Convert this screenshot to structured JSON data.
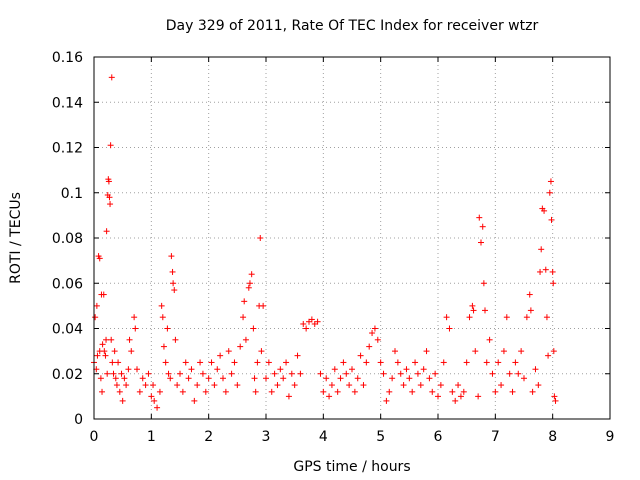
{
  "chart_data": {
    "type": "scatter",
    "title": "Day 329 of 2011, Rate Of TEC Index for receiver wtzr",
    "xlabel": "GPS time / hours",
    "ylabel": "ROTI / TECUs",
    "xlim": [
      0,
      9
    ],
    "ylim": [
      0,
      0.16
    ],
    "x_ticks": [
      "0",
      "1",
      "2",
      "3",
      "4",
      "5",
      "6",
      "7",
      "8",
      "9"
    ],
    "y_ticks": [
      "0",
      "0.02",
      "0.04",
      "0.06",
      "0.08",
      "0.1",
      "0.12",
      "0.14",
      "0.16"
    ],
    "grid": true,
    "marker": "+",
    "series_color": "#ff0000",
    "series": [
      {
        "name": "ROTI",
        "points": [
          [
            0.0,
            0.025
          ],
          [
            0.02,
            0.045
          ],
          [
            0.04,
            0.022
          ],
          [
            0.05,
            0.05
          ],
          [
            0.06,
            0.028
          ],
          [
            0.08,
            0.072
          ],
          [
            0.1,
            0.071
          ],
          [
            0.1,
            0.03
          ],
          [
            0.12,
            0.018
          ],
          [
            0.13,
            0.055
          ],
          [
            0.14,
            0.012
          ],
          [
            0.15,
            0.033
          ],
          [
            0.17,
            0.055
          ],
          [
            0.18,
            0.03
          ],
          [
            0.2,
            0.028
          ],
          [
            0.21,
            0.035
          ],
          [
            0.22,
            0.083
          ],
          [
            0.23,
            0.02
          ],
          [
            0.24,
            0.099
          ],
          [
            0.25,
            0.106
          ],
          [
            0.26,
            0.105
          ],
          [
            0.27,
            0.098
          ],
          [
            0.28,
            0.095
          ],
          [
            0.29,
            0.121
          ],
          [
            0.3,
            0.035
          ],
          [
            0.31,
            0.151
          ],
          [
            0.32,
            0.025
          ],
          [
            0.34,
            0.02
          ],
          [
            0.36,
            0.03
          ],
          [
            0.38,
            0.018
          ],
          [
            0.4,
            0.015
          ],
          [
            0.42,
            0.025
          ],
          [
            0.45,
            0.012
          ],
          [
            0.48,
            0.02
          ],
          [
            0.5,
            0.008
          ],
          [
            0.53,
            0.018
          ],
          [
            0.56,
            0.015
          ],
          [
            0.6,
            0.022
          ],
          [
            0.62,
            0.035
          ],
          [
            0.65,
            0.03
          ],
          [
            0.7,
            0.045
          ],
          [
            0.72,
            0.04
          ],
          [
            0.75,
            0.022
          ],
          [
            0.8,
            0.012
          ],
          [
            0.85,
            0.018
          ],
          [
            0.9,
            0.015
          ],
          [
            0.95,
            0.02
          ],
          [
            1.0,
            0.01
          ],
          [
            1.03,
            0.015
          ],
          [
            1.05,
            0.008
          ],
          [
            1.1,
            0.005
          ],
          [
            1.15,
            0.012
          ],
          [
            1.18,
            0.05
          ],
          [
            1.2,
            0.045
          ],
          [
            1.22,
            0.032
          ],
          [
            1.25,
            0.025
          ],
          [
            1.28,
            0.04
          ],
          [
            1.3,
            0.02
          ],
          [
            1.33,
            0.018
          ],
          [
            1.35,
            0.072
          ],
          [
            1.37,
            0.065
          ],
          [
            1.38,
            0.06
          ],
          [
            1.4,
            0.057
          ],
          [
            1.42,
            0.035
          ],
          [
            1.45,
            0.015
          ],
          [
            1.5,
            0.02
          ],
          [
            1.55,
            0.012
          ],
          [
            1.6,
            0.025
          ],
          [
            1.65,
            0.018
          ],
          [
            1.7,
            0.022
          ],
          [
            1.75,
            0.008
          ],
          [
            1.8,
            0.015
          ],
          [
            1.85,
            0.025
          ],
          [
            1.9,
            0.02
          ],
          [
            1.95,
            0.012
          ],
          [
            2.0,
            0.018
          ],
          [
            2.05,
            0.025
          ],
          [
            2.1,
            0.015
          ],
          [
            2.15,
            0.022
          ],
          [
            2.2,
            0.028
          ],
          [
            2.25,
            0.018
          ],
          [
            2.3,
            0.012
          ],
          [
            2.35,
            0.03
          ],
          [
            2.4,
            0.02
          ],
          [
            2.45,
            0.025
          ],
          [
            2.5,
            0.015
          ],
          [
            2.55,
            0.032
          ],
          [
            2.6,
            0.045
          ],
          [
            2.62,
            0.052
          ],
          [
            2.65,
            0.035
          ],
          [
            2.7,
            0.058
          ],
          [
            2.72,
            0.06
          ],
          [
            2.75,
            0.064
          ],
          [
            2.78,
            0.04
          ],
          [
            2.8,
            0.018
          ],
          [
            2.82,
            0.012
          ],
          [
            2.85,
            0.025
          ],
          [
            2.88,
            0.05
          ],
          [
            2.9,
            0.08
          ],
          [
            2.92,
            0.03
          ],
          [
            2.95,
            0.05
          ],
          [
            3.0,
            0.018
          ],
          [
            3.05,
            0.025
          ],
          [
            3.1,
            0.012
          ],
          [
            3.15,
            0.02
          ],
          [
            3.2,
            0.015
          ],
          [
            3.25,
            0.022
          ],
          [
            3.3,
            0.018
          ],
          [
            3.35,
            0.025
          ],
          [
            3.4,
            0.01
          ],
          [
            3.45,
            0.02
          ],
          [
            3.5,
            0.015
          ],
          [
            3.55,
            0.028
          ],
          [
            3.6,
            0.02
          ],
          [
            3.65,
            0.042
          ],
          [
            3.7,
            0.04
          ],
          [
            3.75,
            0.043
          ],
          [
            3.8,
            0.044
          ],
          [
            3.85,
            0.042
          ],
          [
            3.9,
            0.043
          ],
          [
            3.95,
            0.02
          ],
          [
            4.0,
            0.012
          ],
          [
            4.05,
            0.018
          ],
          [
            4.1,
            0.01
          ],
          [
            4.15,
            0.015
          ],
          [
            4.2,
            0.022
          ],
          [
            4.25,
            0.012
          ],
          [
            4.3,
            0.018
          ],
          [
            4.35,
            0.025
          ],
          [
            4.4,
            0.02
          ],
          [
            4.45,
            0.015
          ],
          [
            4.5,
            0.022
          ],
          [
            4.55,
            0.012
          ],
          [
            4.6,
            0.018
          ],
          [
            4.65,
            0.028
          ],
          [
            4.7,
            0.015
          ],
          [
            4.75,
            0.025
          ],
          [
            4.8,
            0.032
          ],
          [
            4.85,
            0.038
          ],
          [
            4.9,
            0.04
          ],
          [
            4.95,
            0.035
          ],
          [
            5.0,
            0.025
          ],
          [
            5.05,
            0.02
          ],
          [
            5.1,
            0.008
          ],
          [
            5.15,
            0.012
          ],
          [
            5.2,
            0.018
          ],
          [
            5.25,
            0.03
          ],
          [
            5.3,
            0.025
          ],
          [
            5.35,
            0.02
          ],
          [
            5.4,
            0.015
          ],
          [
            5.45,
            0.022
          ],
          [
            5.5,
            0.018
          ],
          [
            5.55,
            0.012
          ],
          [
            5.6,
            0.025
          ],
          [
            5.65,
            0.02
          ],
          [
            5.7,
            0.015
          ],
          [
            5.75,
            0.022
          ],
          [
            5.8,
            0.03
          ],
          [
            5.85,
            0.018
          ],
          [
            5.9,
            0.012
          ],
          [
            5.95,
            0.02
          ],
          [
            6.0,
            0.01
          ],
          [
            6.05,
            0.015
          ],
          [
            6.1,
            0.025
          ],
          [
            6.15,
            0.045
          ],
          [
            6.2,
            0.04
          ],
          [
            6.25,
            0.012
          ],
          [
            6.3,
            0.008
          ],
          [
            6.35,
            0.015
          ],
          [
            6.4,
            0.01
          ],
          [
            6.45,
            0.012
          ],
          [
            6.5,
            0.025
          ],
          [
            6.55,
            0.045
          ],
          [
            6.6,
            0.05
          ],
          [
            6.62,
            0.048
          ],
          [
            6.65,
            0.03
          ],
          [
            6.7,
            0.01
          ],
          [
            6.72,
            0.089
          ],
          [
            6.75,
            0.078
          ],
          [
            6.78,
            0.085
          ],
          [
            6.8,
            0.06
          ],
          [
            6.82,
            0.048
          ],
          [
            6.85,
            0.025
          ],
          [
            6.9,
            0.035
          ],
          [
            6.95,
            0.02
          ],
          [
            7.0,
            0.012
          ],
          [
            7.05,
            0.025
          ],
          [
            7.1,
            0.015
          ],
          [
            7.15,
            0.03
          ],
          [
            7.2,
            0.045
          ],
          [
            7.25,
            0.02
          ],
          [
            7.3,
            0.012
          ],
          [
            7.35,
            0.025
          ],
          [
            7.4,
            0.02
          ],
          [
            7.45,
            0.03
          ],
          [
            7.5,
            0.018
          ],
          [
            7.55,
            0.045
          ],
          [
            7.6,
            0.055
          ],
          [
            7.62,
            0.048
          ],
          [
            7.65,
            0.012
          ],
          [
            7.7,
            0.022
          ],
          [
            7.75,
            0.015
          ],
          [
            7.78,
            0.065
          ],
          [
            7.8,
            0.075
          ],
          [
            7.82,
            0.093
          ],
          [
            7.85,
            0.092
          ],
          [
            7.88,
            0.066
          ],
          [
            7.9,
            0.045
          ],
          [
            7.92,
            0.028
          ],
          [
            7.95,
            0.1
          ],
          [
            7.97,
            0.105
          ],
          [
            7.98,
            0.088
          ],
          [
            8.0,
            0.065
          ],
          [
            8.01,
            0.06
          ],
          [
            8.02,
            0.03
          ],
          [
            8.03,
            0.01
          ],
          [
            8.05,
            0.008
          ]
        ]
      }
    ]
  }
}
